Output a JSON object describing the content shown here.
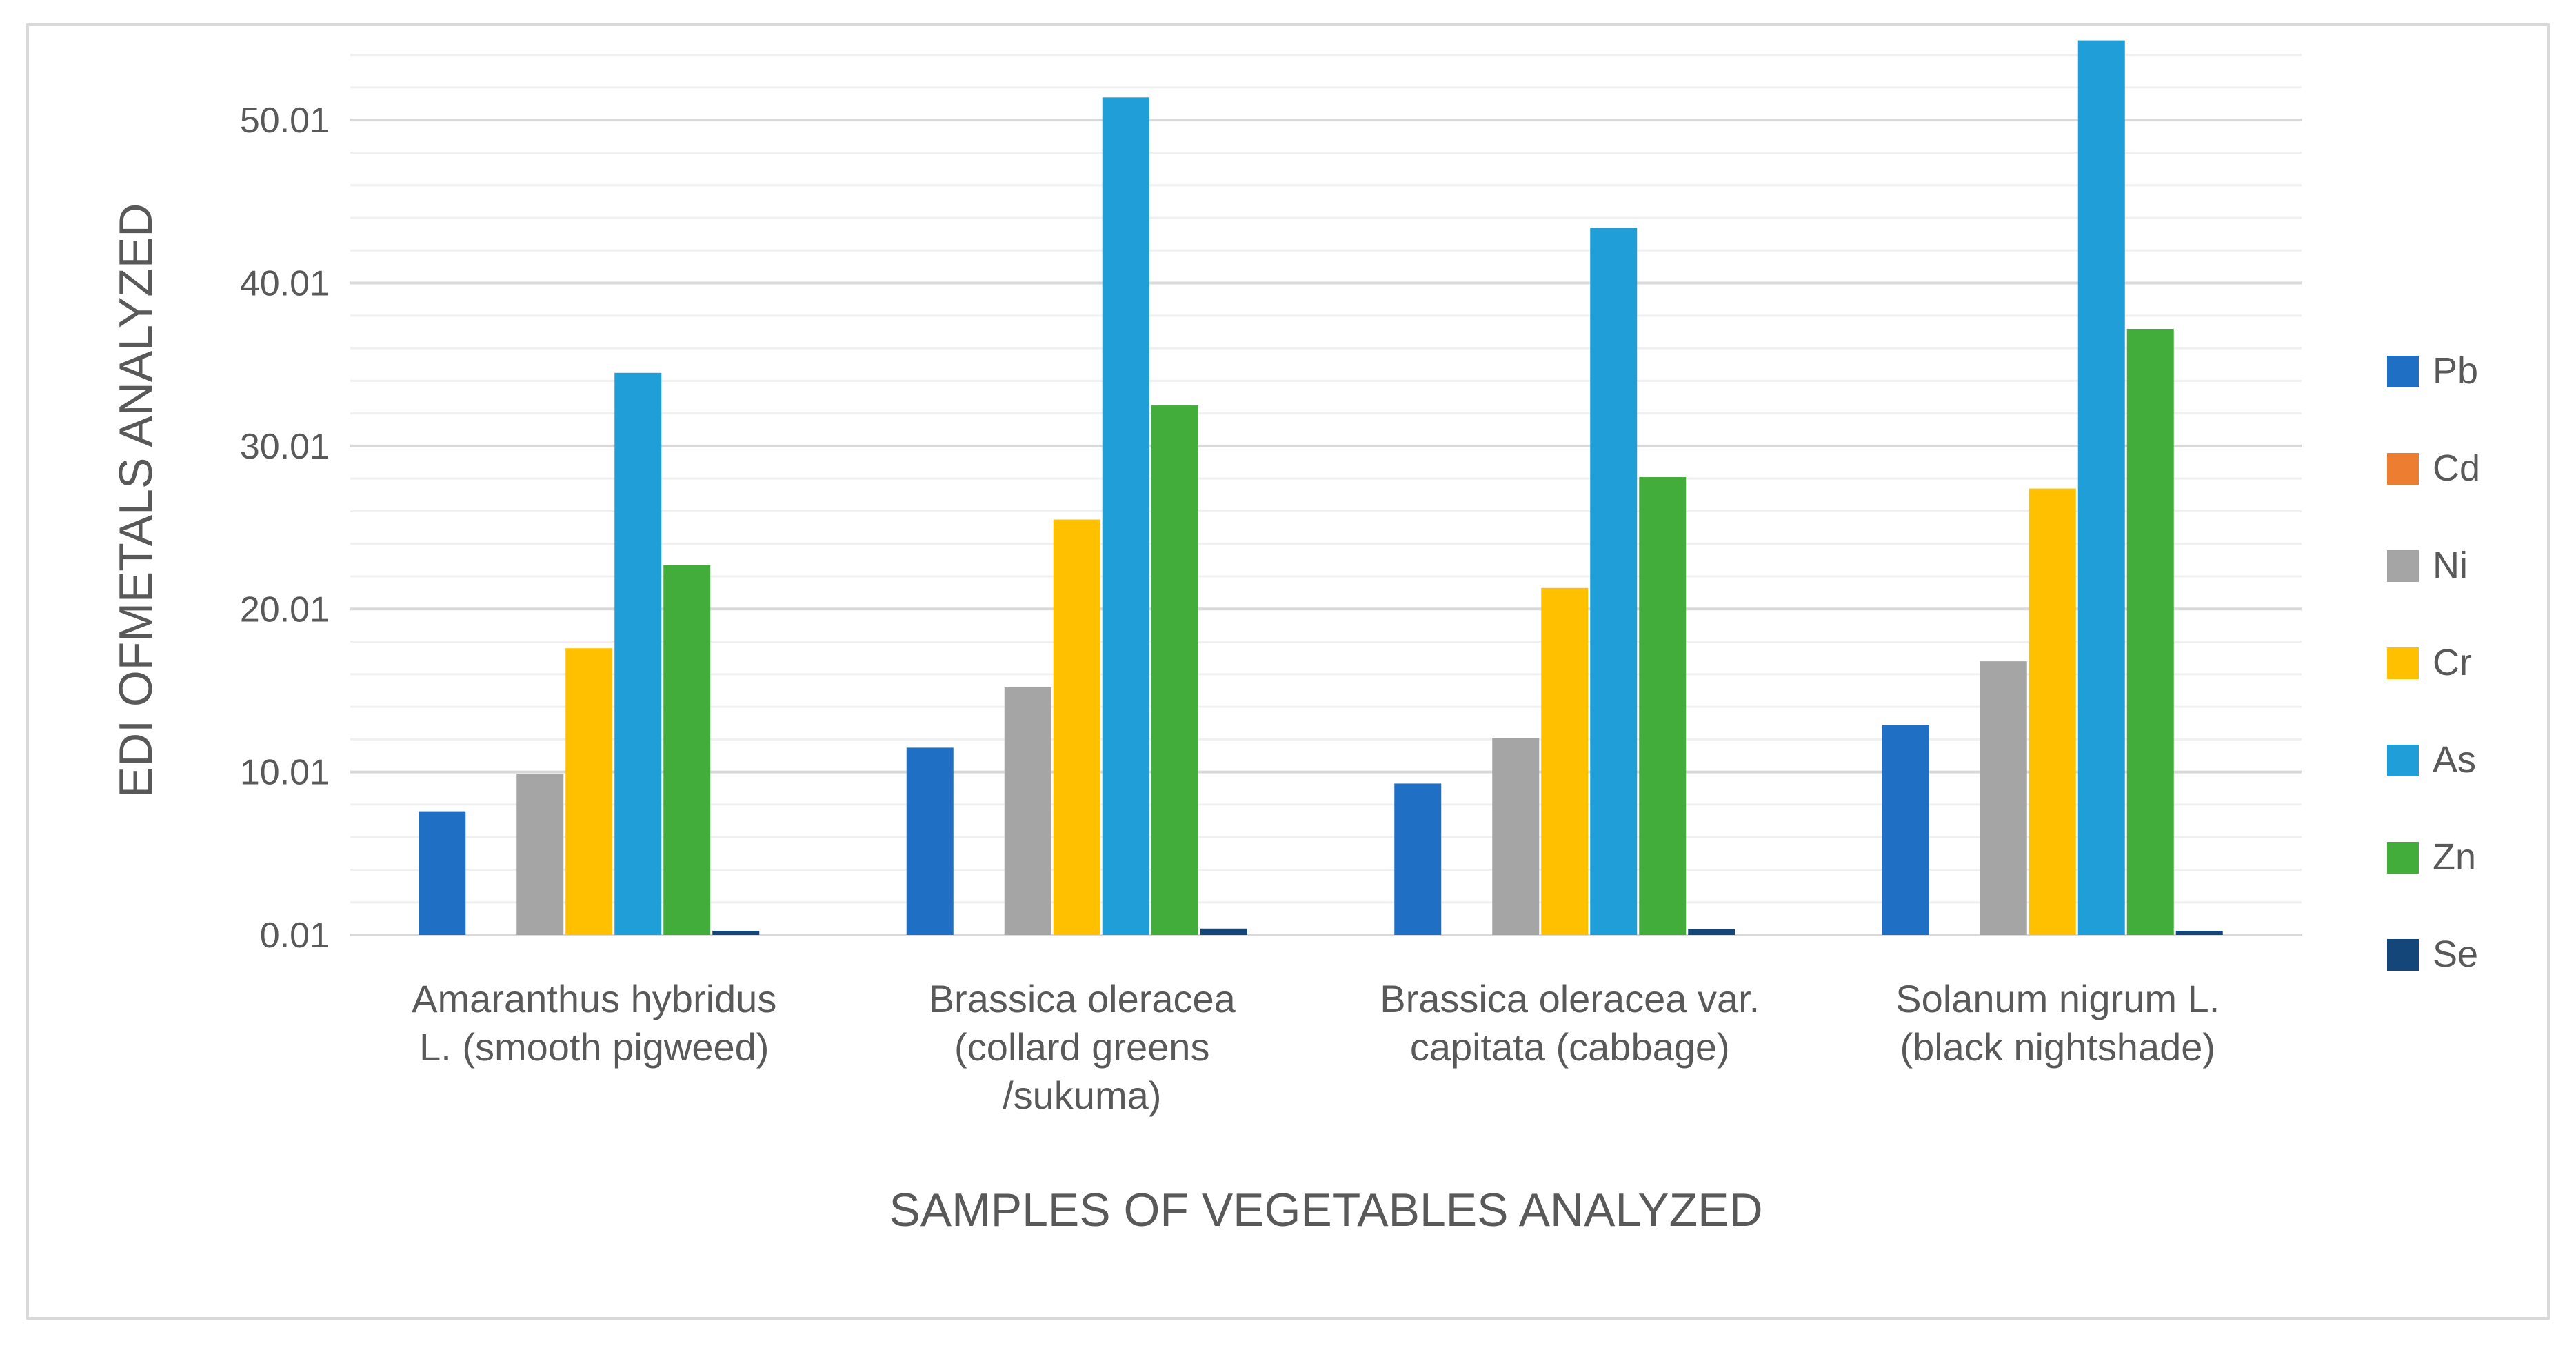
{
  "chart_data": {
    "type": "bar",
    "title": "",
    "xlabel": "SAMPLES OF VEGETABLES ANALYZED",
    "ylabel": "EDI OFMETALS ANALYZED",
    "ylim": [
      0.01,
      55.01
    ],
    "y_ticks": [
      0.01,
      10.01,
      20.01,
      30.01,
      40.01,
      50.01
    ],
    "y_tick_labels": [
      "0.01",
      "10.01",
      "20.01",
      "30.01",
      "40.01",
      "50.01"
    ],
    "grid": true,
    "legend_position": "right",
    "categories": [
      [
        "Amaranthus hybridus",
        "L. (smooth pigweed)"
      ],
      [
        "Brassica oleracea",
        "(collard greens",
        "/sukuma)"
      ],
      [
        "Brassica oleracea var.",
        "capitata (cabbage)"
      ],
      [
        "Solanum nigrum L.",
        "(black nightshade)"
      ]
    ],
    "series": [
      {
        "name": "Pb",
        "color": "#1f6fc5",
        "values": [
          7.6,
          11.5,
          9.3,
          12.9
        ]
      },
      {
        "name": "Cd",
        "color": "#ed7d31",
        "values": [
          0.01,
          0.01,
          0.01,
          0.01
        ]
      },
      {
        "name": "Ni",
        "color": "#a5a5a5",
        "values": [
          9.9,
          15.2,
          12.1,
          16.8
        ]
      },
      {
        "name": "Cr",
        "color": "#ffc000",
        "values": [
          17.6,
          25.5,
          21.3,
          27.4
        ]
      },
      {
        "name": "As",
        "color": "#1f9ed8",
        "values": [
          34.5,
          51.4,
          43.4,
          54.9
        ]
      },
      {
        "name": "Zn",
        "color": "#43ad3b",
        "values": [
          22.7,
          32.5,
          28.1,
          37.2
        ]
      },
      {
        "name": "Se",
        "color": "#14467a",
        "values": [
          0.2,
          0.4,
          0.35,
          0.25
        ]
      }
    ]
  }
}
